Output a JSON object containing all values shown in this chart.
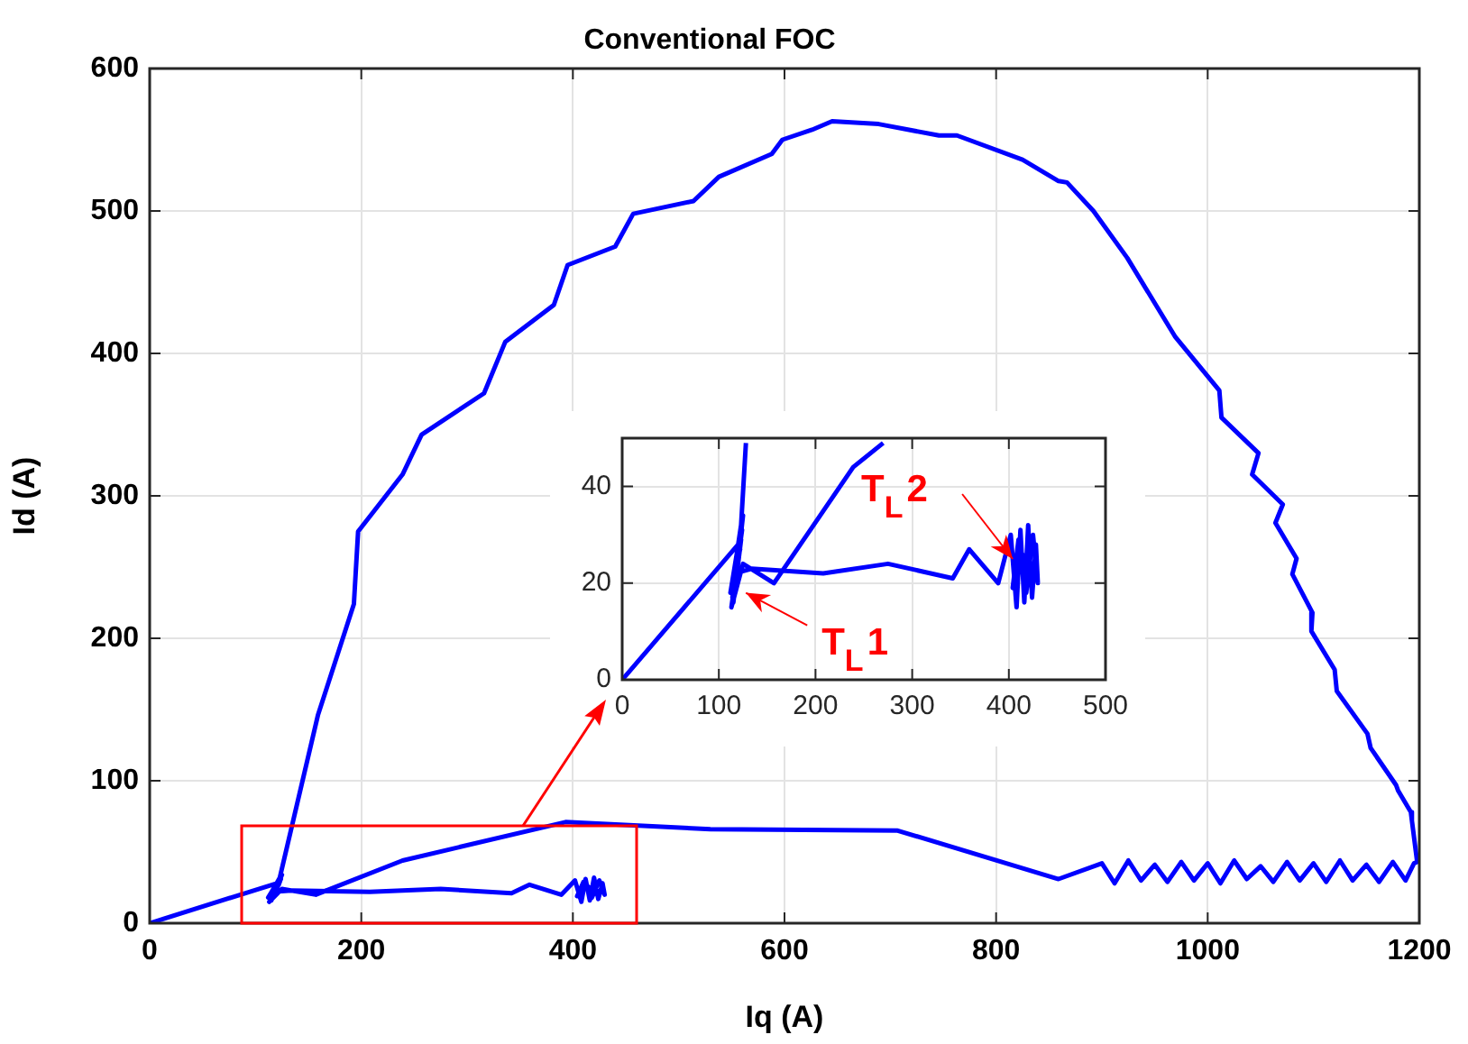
{
  "chart_data": [
    {
      "type": "line",
      "title": "Conventional FOC",
      "xlabel": "Iq (A)",
      "ylabel": "Id (A)",
      "xlim": [
        0,
        1200
      ],
      "ylim": [
        0,
        600
      ],
      "xticks": [
        0,
        200,
        400,
        600,
        800,
        1000,
        1200
      ],
      "yticks": [
        0,
        100,
        200,
        300,
        400,
        500,
        600
      ],
      "grid": true,
      "series": [
        {
          "color": "#0000ff",
          "x": [
            0,
            120,
            123,
            159,
            193,
            197,
            239,
            257,
            316,
            336,
            382,
            395,
            440,
            457,
            514,
            538,
            588,
            598,
            626,
            645,
            689,
            746,
            763,
            825,
            859,
            867,
            892,
            924,
            969,
            1011,
            1013,
            1048,
            1042,
            1071,
            1064,
            1084,
            1080,
            1099,
            1098,
            1120,
            1122,
            1151,
            1154,
            1178,
            1180,
            1192,
            1193,
            1198,
            1195,
            1187,
            1175,
            1162,
            1150,
            1137,
            1125,
            1112,
            1100,
            1087,
            1075,
            1062,
            1050,
            1037,
            1025,
            1012,
            1000,
            987,
            975,
            962,
            950,
            937,
            925,
            912,
            900,
            859,
            707,
            530,
            393,
            239,
            157,
            125,
            113,
            124,
            114,
            123,
            115,
            125,
            112,
            122,
            116,
            134,
            208,
            275,
            342,
            359,
            389,
            402,
            408,
            412,
            416,
            420,
            424,
            428,
            430,
            425,
            418,
            410,
            404,
            414,
            421
          ],
          "values": [
            0,
            28,
            32,
            146,
            224,
            275,
            315,
            343,
            372,
            408,
            434,
            462,
            475,
            498,
            507,
            524,
            540,
            550,
            557,
            563,
            561,
            553,
            553,
            536,
            521,
            520,
            500,
            467,
            412,
            374,
            355,
            330,
            315,
            294,
            281,
            256,
            245,
            218,
            205,
            178,
            163,
            133,
            123,
            97,
            93,
            78,
            72,
            43,
            42,
            30,
            43,
            29,
            41,
            30,
            44,
            29,
            42,
            30,
            43,
            29,
            40,
            31,
            44,
            28,
            42,
            30,
            43,
            29,
            41,
            30,
            44,
            28,
            42,
            31,
            65,
            66,
            71,
            44,
            20,
            24,
            15,
            31,
            17,
            29,
            16,
            34,
            18,
            27,
            22,
            23,
            22,
            24,
            21,
            27,
            20,
            30,
            15,
            31,
            16,
            32,
            17,
            28,
            20,
            30,
            18,
            29,
            19,
            26,
            20
          ]
        }
      ]
    },
    {
      "type": "line",
      "xlim": [
        0,
        500
      ],
      "ylim": [
        0,
        50
      ],
      "xticks": [
        0,
        100,
        200,
        300,
        400,
        500
      ],
      "yticks": [
        0,
        20,
        40
      ],
      "grid": true,
      "annotations": [
        {
          "text": "T$_{L}$1",
          "x": 128,
          "y": 18
        },
        {
          "text": "T$_{L}$2",
          "x": 404,
          "y": 25
        }
      ],
      "series": [
        {
          "color": "#0000ff",
          "x": [
            0,
            120,
            123,
            128,
            null,
            270,
            239,
            157,
            125,
            113,
            124,
            114,
            123,
            115,
            125,
            112,
            122,
            116,
            134,
            208,
            275,
            342,
            359,
            389,
            402,
            408,
            412,
            416,
            420,
            424,
            428,
            430,
            425,
            418,
            410,
            404,
            414,
            421
          ],
          "values": [
            0,
            28,
            32,
            49,
            null,
            49,
            44,
            20,
            24,
            15,
            31,
            17,
            29,
            16,
            34,
            18,
            27,
            22,
            23,
            22,
            24,
            21,
            27,
            20,
            30,
            15,
            31,
            16,
            32,
            17,
            28,
            20,
            30,
            18,
            29,
            19,
            26,
            20
          ]
        }
      ]
    }
  ]
}
